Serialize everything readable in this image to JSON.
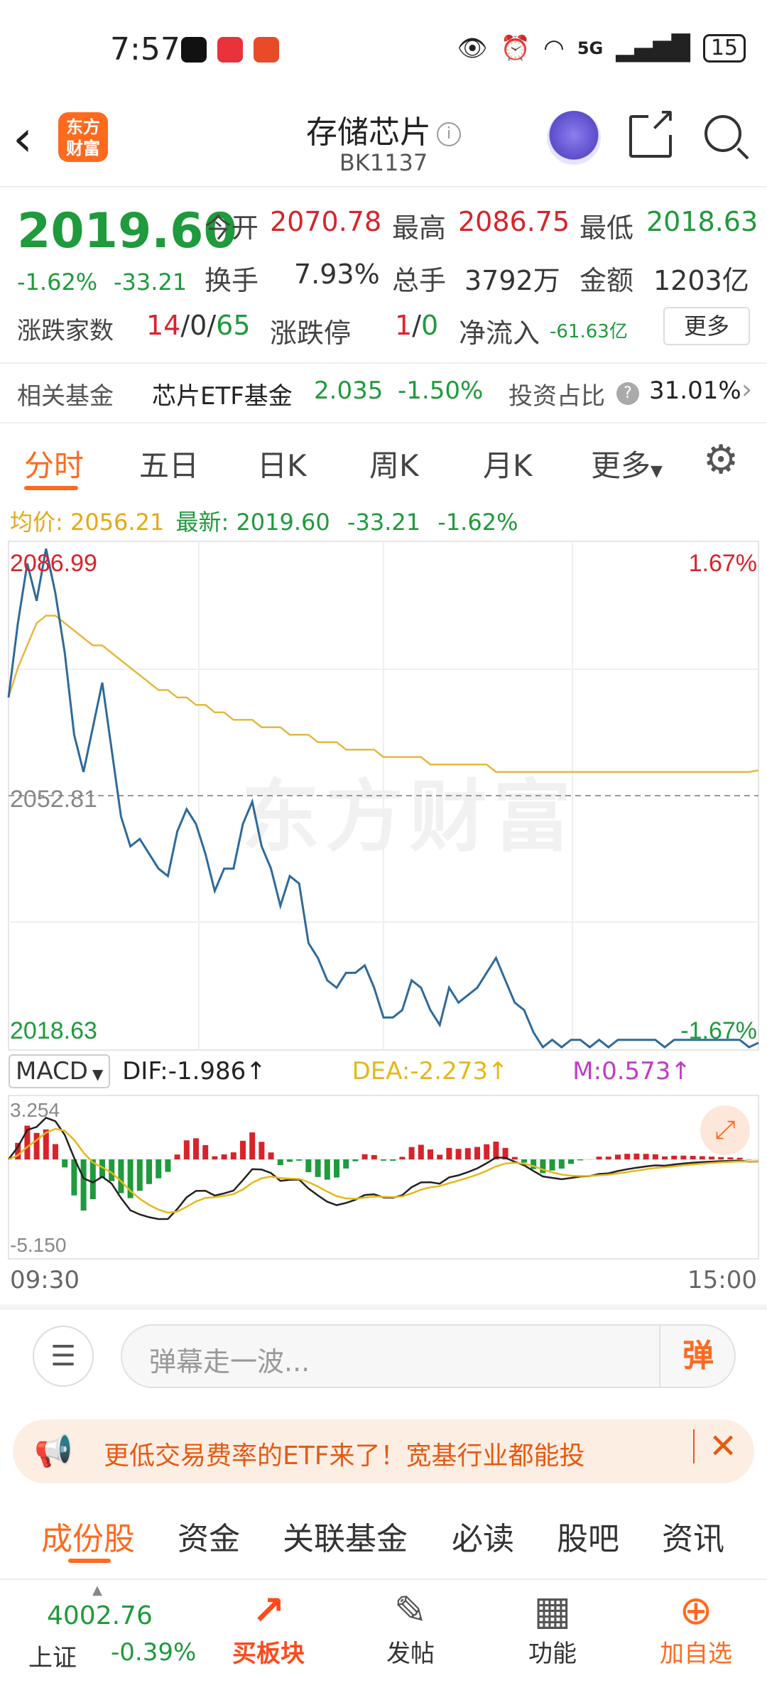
{
  "status_bar": {
    "time": "7:57",
    "network": "5G",
    "battery": "15"
  },
  "header": {
    "logo_line1": "东方",
    "logo_line2": "财富",
    "title": "存储芯片",
    "code": "BK1137"
  },
  "quote": {
    "last_price": "2019.60",
    "change_pct": "-1.62%",
    "change_val": "-33.21",
    "open_label": "今开",
    "open": "2070.78",
    "high_label": "最高",
    "high": "2086.75",
    "low_label": "最低",
    "low": "2018.63",
    "turnover_label": "换手",
    "turnover": "7.93%",
    "volume_label": "总手",
    "volume": "3792万",
    "amount_label": "金额",
    "amount": "1203亿",
    "advdec_label": "涨跌家数",
    "adv": "14",
    "flat": "0",
    "dec": "65",
    "limit_label": "涨跌停",
    "limit_up": "1",
    "limit_down": "0",
    "netflow_label": "净流入",
    "netflow": "-61.63亿",
    "more_label": "更多"
  },
  "fund": {
    "label": "相关基金",
    "name": "芯片ETF基金",
    "price": "2.035",
    "change": "-1.50%",
    "weight_label": "投资占比",
    "weight": "31.01%"
  },
  "chart_tabs": [
    "分时",
    "五日",
    "日K",
    "周K",
    "月K",
    "更多"
  ],
  "price_info": {
    "avg_label": "均价:",
    "avg": "2056.21",
    "latest_label": "最新:",
    "latest": "2019.60",
    "change": "-33.21",
    "pct": "-1.62%"
  },
  "chart_labels": {
    "y_top": "2086.99",
    "y_mid": "2052.81",
    "y_bottom": "2018.63",
    "pct_top": "1.67%",
    "pct_bottom": "-1.67%",
    "watermark": "东方财富"
  },
  "macd": {
    "select_label": "MACD",
    "dif": "DIF:-1.986↑",
    "dea": "DEA:-2.273↑",
    "m": "M:0.573↑",
    "y_top": "3.254",
    "y_bottom": "-5.150"
  },
  "time_axis": {
    "start": "09:30",
    "end": "15:00"
  },
  "comment": {
    "placeholder": "弹幕走一波...",
    "danmaku_label": "弹"
  },
  "ad": {
    "text": "更低交易费率的ETF来了！宽基行业都能投"
  },
  "bottom_tabs": [
    "成份股",
    "资金",
    "关联基金",
    "必读",
    "股吧",
    "资讯"
  ],
  "bottom_nav": {
    "index_value": "4002.76",
    "index_name": "上证",
    "index_change": "-0.39%",
    "buy_sector": "买板块",
    "post": "发帖",
    "functions": "功能",
    "add_watch": "加自选"
  },
  "colors": {
    "up": "#d9232a",
    "down": "#1f9a3c",
    "accent": "#ff6a1f",
    "avg_line": "#e6b840",
    "price_line": "#2f6a9a"
  },
  "chart_data": {
    "type": "line",
    "ylim": [
      2018.63,
      2086.99
    ],
    "reference": 2052.81,
    "xlim": [
      "09:30",
      "15:00"
    ],
    "series": [],
    "x": [
      0,
      3,
      6,
      9,
      12,
      15,
      18,
      21,
      24,
      27,
      30,
      33,
      36,
      39,
      42,
      45,
      48,
      51,
      54,
      57,
      60,
      63,
      66,
      69,
      72,
      75,
      78,
      81,
      84,
      87,
      90,
      93,
      96,
      99,
      102,
      105,
      108,
      111,
      114,
      117,
      120,
      123,
      126,
      129,
      132,
      135,
      138,
      141,
      144,
      147,
      150,
      153,
      156,
      159,
      162,
      165,
      168,
      171,
      174,
      177,
      180,
      183,
      186,
      189,
      192,
      195,
      198,
      201,
      204,
      207,
      210,
      213,
      216,
      219,
      222,
      225,
      228,
      231,
      234,
      237,
      240
    ],
    "price": [
      2066,
      2076,
      2084,
      2079,
      2086,
      2080,
      2072,
      2061,
      2056,
      2062,
      2068,
      2059,
      2050,
      2046,
      2047,
      2045,
      2043,
      2042,
      2048,
      2051,
      2049,
      2045,
      2040,
      2043,
      2043,
      2049,
      2052,
      2046,
      2043,
      2038,
      2042,
      2041,
      2033,
      2031,
      2028,
      2027,
      2029,
      2029,
      2030,
      2027,
      2023,
      2023,
      2024,
      2028,
      2027,
      2024,
      2022,
      2027,
      2025,
      2026,
      2027,
      2029,
      2031,
      2028,
      2025,
      2024,
      2021,
      2019,
      2020,
      2019,
      2020,
      2020,
      2019,
      2020,
      2019,
      2020,
      2020,
      2020,
      2020,
      2020,
      2019,
      2020,
      2020,
      2020,
      2020,
      2020,
      2020,
      2020,
      2020,
      2019,
      2019.6
    ],
    "avg": [
      2066,
      2070,
      2073,
      2076,
      2077,
      2077,
      2076,
      2075,
      2074,
      2073,
      2073,
      2072,
      2071,
      2070,
      2069,
      2068,
      2067,
      2067,
      2066,
      2066,
      2065,
      2065,
      2064,
      2064,
      2063,
      2063,
      2063,
      2062,
      2062,
      2062,
      2061,
      2061,
      2061,
      2060,
      2060,
      2060,
      2059,
      2059,
      2059,
      2059,
      2058,
      2058,
      2058,
      2058,
      2058,
      2057,
      2057,
      2057,
      2057,
      2057,
      2057,
      2057,
      2056,
      2056,
      2056,
      2056,
      2056,
      2056,
      2056,
      2056,
      2056,
      2056,
      2056,
      2056,
      2056,
      2056,
      2056,
      2056,
      2056,
      2056,
      2056,
      2056,
      2056,
      2056,
      2056,
      2056,
      2056,
      2056,
      2056,
      2056,
      2056.21
    ]
  }
}
